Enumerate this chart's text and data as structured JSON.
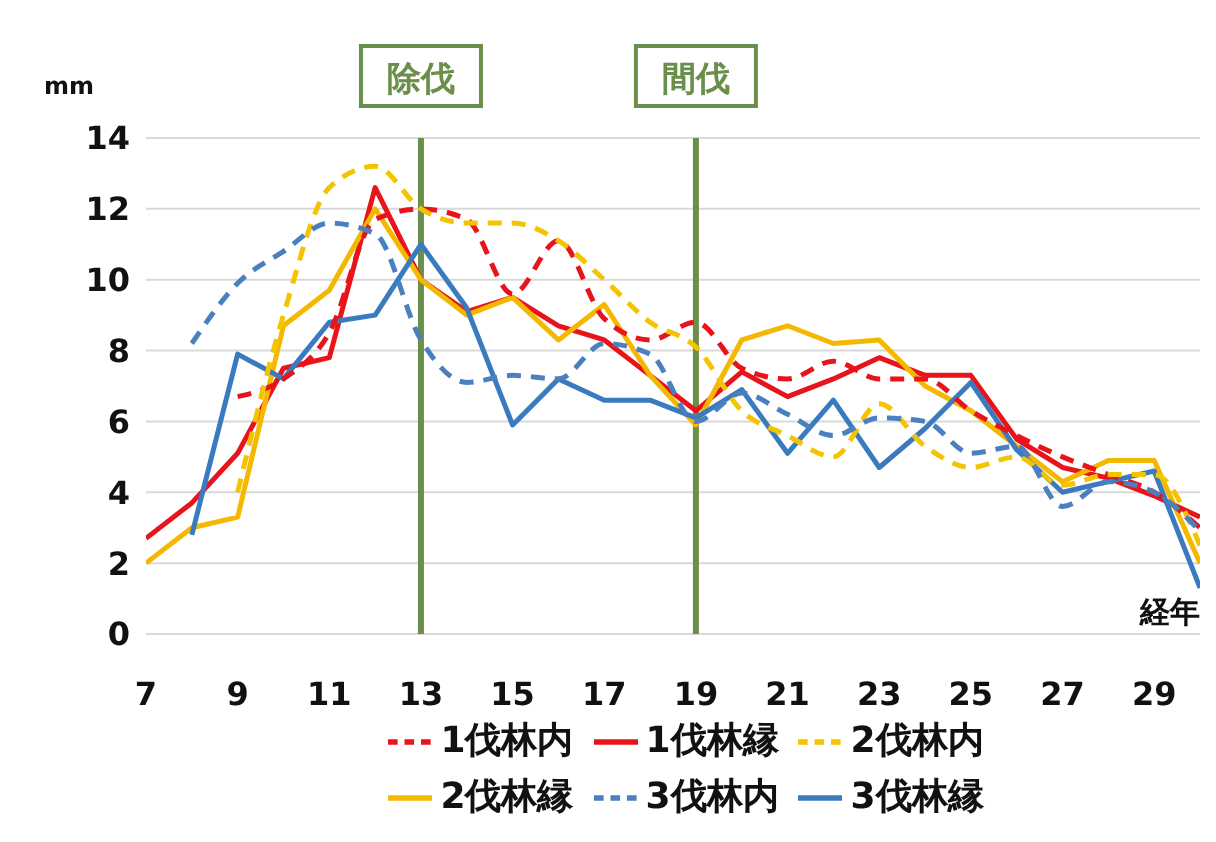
{
  "chart_data": {
    "type": "line",
    "ylabel": "mm",
    "xlabel": "経年",
    "x": [
      7,
      8,
      9,
      10,
      11,
      12,
      13,
      14,
      15,
      16,
      17,
      18,
      19,
      20,
      21,
      22,
      23,
      24,
      25,
      26,
      27,
      28,
      29,
      30
    ],
    "xlim": [
      7,
      30
    ],
    "xticks": [
      7,
      9,
      11,
      13,
      15,
      17,
      19,
      21,
      23,
      25,
      27,
      29
    ],
    "ylim": [
      0,
      14
    ],
    "yticks": [
      0,
      2,
      4,
      6,
      8,
      10,
      12,
      14
    ],
    "grid": "y",
    "legend": "bottom",
    "marker": "none",
    "ref_lines": [
      {
        "axis": "x",
        "value": 13,
        "label": "除伐",
        "color": "#6a8f4a"
      },
      {
        "axis": "x",
        "value": 19,
        "label": "間伐",
        "color": "#6a8f4a"
      }
    ],
    "series": [
      {
        "name": "1伐林縁",
        "color": "#e8141c",
        "line_style": "solid",
        "values": [
          2.7,
          3.7,
          5.1,
          7.5,
          7.8,
          12.6,
          10.0,
          9.1,
          9.5,
          8.7,
          8.3,
          7.3,
          6.3,
          7.4,
          6.7,
          7.2,
          7.8,
          7.3,
          7.3,
          5.5,
          4.7,
          4.4,
          3.9,
          3.3
        ]
      },
      {
        "name": "2伐林縁",
        "color": "#f5b800",
        "line_style": "solid",
        "values": [
          2.0,
          3.0,
          3.3,
          8.7,
          9.7,
          12.0,
          10.0,
          9.0,
          9.5,
          8.3,
          9.3,
          7.3,
          5.9,
          8.3,
          8.7,
          8.2,
          8.3,
          7.0,
          6.3,
          5.3,
          4.3,
          4.9,
          4.9,
          2.0
        ]
      },
      {
        "name": "3伐林縁",
        "color": "#3a7bbf",
        "line_style": "solid",
        "values": [
          null,
          2.8,
          7.9,
          7.2,
          8.8,
          9.0,
          11.0,
          9.2,
          5.9,
          7.2,
          6.6,
          6.6,
          6.1,
          6.9,
          5.1,
          6.6,
          4.7,
          5.8,
          7.1,
          5.2,
          4.0,
          4.3,
          4.6,
          1.3
        ]
      },
      {
        "name": "1伐林内",
        "color": "#e8141c",
        "line_style": "dashed",
        "values": [
          null,
          null,
          6.7,
          7.2,
          8.5,
          11.7,
          12.0,
          11.7,
          9.6,
          11.1,
          8.9,
          8.3,
          8.8,
          7.5,
          7.2,
          7.7,
          7.2,
          7.2,
          6.3,
          5.6,
          5.0,
          4.5,
          4.0,
          3.0
        ]
      },
      {
        "name": "2伐林内",
        "color": "#f5c400",
        "line_style": "dashed",
        "values": [
          null,
          null,
          4.0,
          9.0,
          12.6,
          13.2,
          12.0,
          11.6,
          11.6,
          11.1,
          10.0,
          8.8,
          8.1,
          6.3,
          5.6,
          5.0,
          6.5,
          5.3,
          4.7,
          5.0,
          4.2,
          4.5,
          4.5,
          2.5
        ]
      },
      {
        "name": "3伐林内",
        "color": "#4a7fc0",
        "line_style": "dashed",
        "values": [
          null,
          8.2,
          9.9,
          10.8,
          11.6,
          11.3,
          8.3,
          7.1,
          7.3,
          7.2,
          8.2,
          7.9,
          6.0,
          6.8,
          6.2,
          5.6,
          6.1,
          6.0,
          5.1,
          5.3,
          3.6,
          4.3,
          4.0,
          2.9
        ]
      }
    ]
  }
}
